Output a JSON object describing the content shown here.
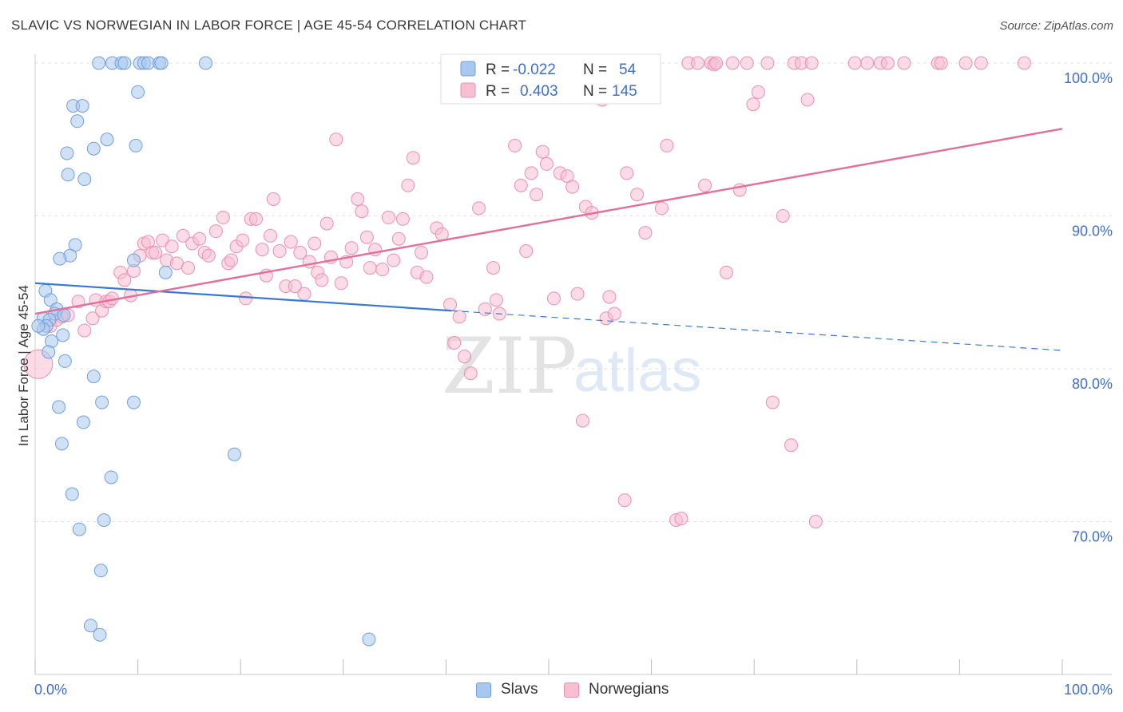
{
  "title": "SLAVIC VS NORWEGIAN IN LABOR FORCE | AGE 45-54 CORRELATION CHART",
  "source": "Source: ZipAtlas.com",
  "watermark": {
    "zip": "ZIP",
    "atlas": "atlas"
  },
  "colors": {
    "slavs_fill": "#a9c8ef",
    "slavs_stroke": "#6f9fdc",
    "slavs_line": "#3a78d4",
    "norw_fill": "#f7bfd1",
    "norw_stroke": "#ea8fb0",
    "norw_line": "#e56e97",
    "value_text": "#3f6fc9",
    "grid": "#e2e2e2"
  },
  "legend_top": {
    "rows": [
      {
        "r_label": "R =",
        "r_value": "-0.022",
        "n_label": "N =",
        "n_value": "54"
      },
      {
        "r_label": "R =",
        "r_value": "0.403",
        "n_label": "N =",
        "n_value": "145"
      }
    ]
  },
  "legend_bottom": {
    "slavs": "Slavs",
    "norwegians": "Norwegians"
  },
  "chart_data": {
    "type": "scatter",
    "title": "SLAVIC VS NORWEGIAN IN LABOR FORCE | AGE 45-54 CORRELATION CHART",
    "xlabel": "",
    "ylabel": "In Labor Force | Age 45-54",
    "xlim": [
      0,
      100
    ],
    "ylim": [
      59.5,
      101.5
    ],
    "x_tick_labels": [
      {
        "value": 0,
        "label": "0.0%"
      },
      {
        "value": 100,
        "label": "100.0%"
      }
    ],
    "y_tick_labels": [
      {
        "value": 70,
        "label": "70.0%"
      },
      {
        "value": 80,
        "label": "80.0%"
      },
      {
        "value": 90,
        "label": "90.0%"
      },
      {
        "value": 100,
        "label": "100.0%"
      }
    ],
    "series": [
      {
        "name": "Slavs",
        "R": -0.022,
        "N": 54,
        "trend": {
          "x0": 0,
          "y0": 85.6,
          "x1": 40.5,
          "y1": 83.8,
          "dashed_to_x": 100,
          "dashed_to_y": 81.2
        },
        "points": [
          [
            6.2,
            100
          ],
          [
            7.5,
            100
          ],
          [
            8.4,
            100
          ],
          [
            8.7,
            100
          ],
          [
            10.2,
            100
          ],
          [
            10.6,
            100
          ],
          [
            11,
            100
          ],
          [
            12.1,
            100
          ],
          [
            12.3,
            100
          ],
          [
            16.6,
            100
          ],
          [
            10,
            98.1
          ],
          [
            3.7,
            97.2
          ],
          [
            4.6,
            97.2
          ],
          [
            4.1,
            96.2
          ],
          [
            7,
            95
          ],
          [
            9.8,
            94.6
          ],
          [
            5.7,
            94.4
          ],
          [
            3.1,
            94.1
          ],
          [
            3.2,
            92.7
          ],
          [
            4.8,
            92.4
          ],
          [
            3.9,
            88.1
          ],
          [
            3.4,
            87.4
          ],
          [
            2.4,
            87.2
          ],
          [
            9.6,
            87.1
          ],
          [
            12.7,
            86.3
          ],
          [
            1,
            85.1
          ],
          [
            1.5,
            84.5
          ],
          [
            2.1,
            83.9
          ],
          [
            0.8,
            83.3
          ],
          [
            1.9,
            83.6
          ],
          [
            1.4,
            83.2
          ],
          [
            2.8,
            83.5
          ],
          [
            1.1,
            82.8
          ],
          [
            0.8,
            82.6
          ],
          [
            2.7,
            82.2
          ],
          [
            1.6,
            81.8
          ],
          [
            1.3,
            81.1
          ],
          [
            2.9,
            80.5
          ],
          [
            5.7,
            79.5
          ],
          [
            6.5,
            77.8
          ],
          [
            9.6,
            77.8
          ],
          [
            2.3,
            77.5
          ],
          [
            4.7,
            76.5
          ],
          [
            2.6,
            75.1
          ],
          [
            19.4,
            74.4
          ],
          [
            7.4,
            72.9
          ],
          [
            3.6,
            71.8
          ],
          [
            6.7,
            70.1
          ],
          [
            4.3,
            69.5
          ],
          [
            6.4,
            66.8
          ],
          [
            5.4,
            63.2
          ],
          [
            6.3,
            62.6
          ],
          [
            32.5,
            62.3
          ],
          [
            0.3,
            82.8
          ]
        ]
      },
      {
        "name": "Norwegians",
        "R": 0.403,
        "N": 145,
        "trend": {
          "x0": 0,
          "y0": 83.6,
          "x1": 100,
          "y1": 95.7
        },
        "points": [
          [
            0.3,
            80.3
          ],
          [
            1.5,
            82.8
          ],
          [
            2.1,
            83.2
          ],
          [
            2.6,
            83.4
          ],
          [
            3.2,
            83.5
          ],
          [
            4.2,
            84.4
          ],
          [
            4.8,
            82.5
          ],
          [
            5.6,
            83.3
          ],
          [
            5.9,
            84.5
          ],
          [
            6.5,
            83.8
          ],
          [
            6.9,
            84.4
          ],
          [
            7.2,
            84.4
          ],
          [
            7.5,
            84.6
          ],
          [
            8.3,
            86.3
          ],
          [
            8.7,
            85.8
          ],
          [
            9.3,
            84.8
          ],
          [
            9.6,
            86.4
          ],
          [
            10.2,
            87.4
          ],
          [
            10.6,
            88.2
          ],
          [
            11,
            88.3
          ],
          [
            11.4,
            87.6
          ],
          [
            11.7,
            87.6
          ],
          [
            12.4,
            88.4
          ],
          [
            12.8,
            87.1
          ],
          [
            13.3,
            88
          ],
          [
            13.8,
            86.9
          ],
          [
            14.4,
            88.7
          ],
          [
            14.9,
            86.6
          ],
          [
            15.3,
            88.2
          ],
          [
            16,
            88.5
          ],
          [
            16.5,
            87.6
          ],
          [
            16.9,
            87.4
          ],
          [
            17.6,
            89
          ],
          [
            18.3,
            89.9
          ],
          [
            18.8,
            86.9
          ],
          [
            19.1,
            87.1
          ],
          [
            19.6,
            88
          ],
          [
            20.2,
            88.4
          ],
          [
            20.5,
            84.6
          ],
          [
            21,
            89.8
          ],
          [
            21.5,
            89.8
          ],
          [
            22.1,
            87.8
          ],
          [
            22.5,
            86.1
          ],
          [
            22.9,
            88.7
          ],
          [
            23.2,
            91.1
          ],
          [
            23.8,
            87.7
          ],
          [
            24.4,
            85.4
          ],
          [
            24.9,
            88.3
          ],
          [
            25.3,
            85.4
          ],
          [
            25.8,
            87.6
          ],
          [
            26.2,
            84.9
          ],
          [
            26.7,
            87
          ],
          [
            27.2,
            88.2
          ],
          [
            27.5,
            86.3
          ],
          [
            27.9,
            85.8
          ],
          [
            28.4,
            89.5
          ],
          [
            28.8,
            87.3
          ],
          [
            29.3,
            95
          ],
          [
            29.8,
            85.6
          ],
          [
            30.3,
            87
          ],
          [
            30.8,
            87.9
          ],
          [
            31.4,
            91.1
          ],
          [
            31.8,
            90.3
          ],
          [
            32.3,
            88.6
          ],
          [
            32.6,
            86.6
          ],
          [
            33.1,
            87.8
          ],
          [
            33.8,
            86.5
          ],
          [
            34.4,
            89.9
          ],
          [
            34.9,
            87.1
          ],
          [
            35.4,
            88.5
          ],
          [
            35.8,
            89.8
          ],
          [
            36.3,
            92
          ],
          [
            36.8,
            93.8
          ],
          [
            37.2,
            86.3
          ],
          [
            37.6,
            87.6
          ],
          [
            38.1,
            86
          ],
          [
            39.1,
            89.2
          ],
          [
            39.6,
            88.8
          ],
          [
            40.4,
            84.2
          ],
          [
            40.8,
            81.7
          ],
          [
            41.3,
            83.4
          ],
          [
            41.8,
            80.8
          ],
          [
            42.4,
            79.7
          ],
          [
            43.2,
            90.5
          ],
          [
            43.8,
            83.9
          ],
          [
            44.6,
            86.6
          ],
          [
            44.9,
            84.5
          ],
          [
            45.2,
            83.6
          ],
          [
            46,
            100
          ],
          [
            46.7,
            94.6
          ],
          [
            47.3,
            92
          ],
          [
            47.8,
            87.7
          ],
          [
            48.3,
            92.8
          ],
          [
            48.8,
            91.4
          ],
          [
            49.4,
            94.2
          ],
          [
            49.8,
            93.4
          ],
          [
            50.5,
            84.6
          ],
          [
            51.1,
            92.8
          ],
          [
            51.8,
            92.6
          ],
          [
            52.3,
            91.9
          ],
          [
            52.8,
            84.9
          ],
          [
            53.3,
            76.6
          ],
          [
            53.6,
            90.6
          ],
          [
            54.2,
            90.2
          ],
          [
            55.2,
            97.6
          ],
          [
            55.6,
            83.3
          ],
          [
            55.9,
            84.7
          ],
          [
            56.4,
            83.6
          ],
          [
            57.4,
            71.4
          ],
          [
            57.6,
            92.8
          ],
          [
            58.1,
            99.1
          ],
          [
            58.6,
            91.4
          ],
          [
            59.4,
            88.9
          ],
          [
            60.1,
            100
          ],
          [
            61,
            90.5
          ],
          [
            61.5,
            94.6
          ],
          [
            62.4,
            70.1
          ],
          [
            62.9,
            70.2
          ],
          [
            63.6,
            100
          ],
          [
            64.5,
            100
          ],
          [
            65.2,
            92
          ],
          [
            65.8,
            100
          ],
          [
            66.1,
            99.9
          ],
          [
            66.3,
            100
          ],
          [
            67.3,
            86.3
          ],
          [
            67.9,
            100
          ],
          [
            68.6,
            91.7
          ],
          [
            69.3,
            100
          ],
          [
            69.9,
            97.3
          ],
          [
            70.4,
            98.1
          ],
          [
            71.3,
            100
          ],
          [
            71.8,
            77.8
          ],
          [
            72.8,
            90
          ],
          [
            73.6,
            75
          ],
          [
            73.9,
            100
          ],
          [
            74.6,
            100
          ],
          [
            75.2,
            97.6
          ],
          [
            75.6,
            100
          ],
          [
            76,
            70
          ],
          [
            79.8,
            100
          ],
          [
            81,
            100
          ],
          [
            82.3,
            100
          ],
          [
            83,
            100
          ],
          [
            84.6,
            100
          ],
          [
            87.9,
            100
          ],
          [
            88.2,
            100
          ],
          [
            90.6,
            100
          ],
          [
            92.1,
            100
          ],
          [
            96.3,
            100
          ]
        ]
      }
    ]
  }
}
